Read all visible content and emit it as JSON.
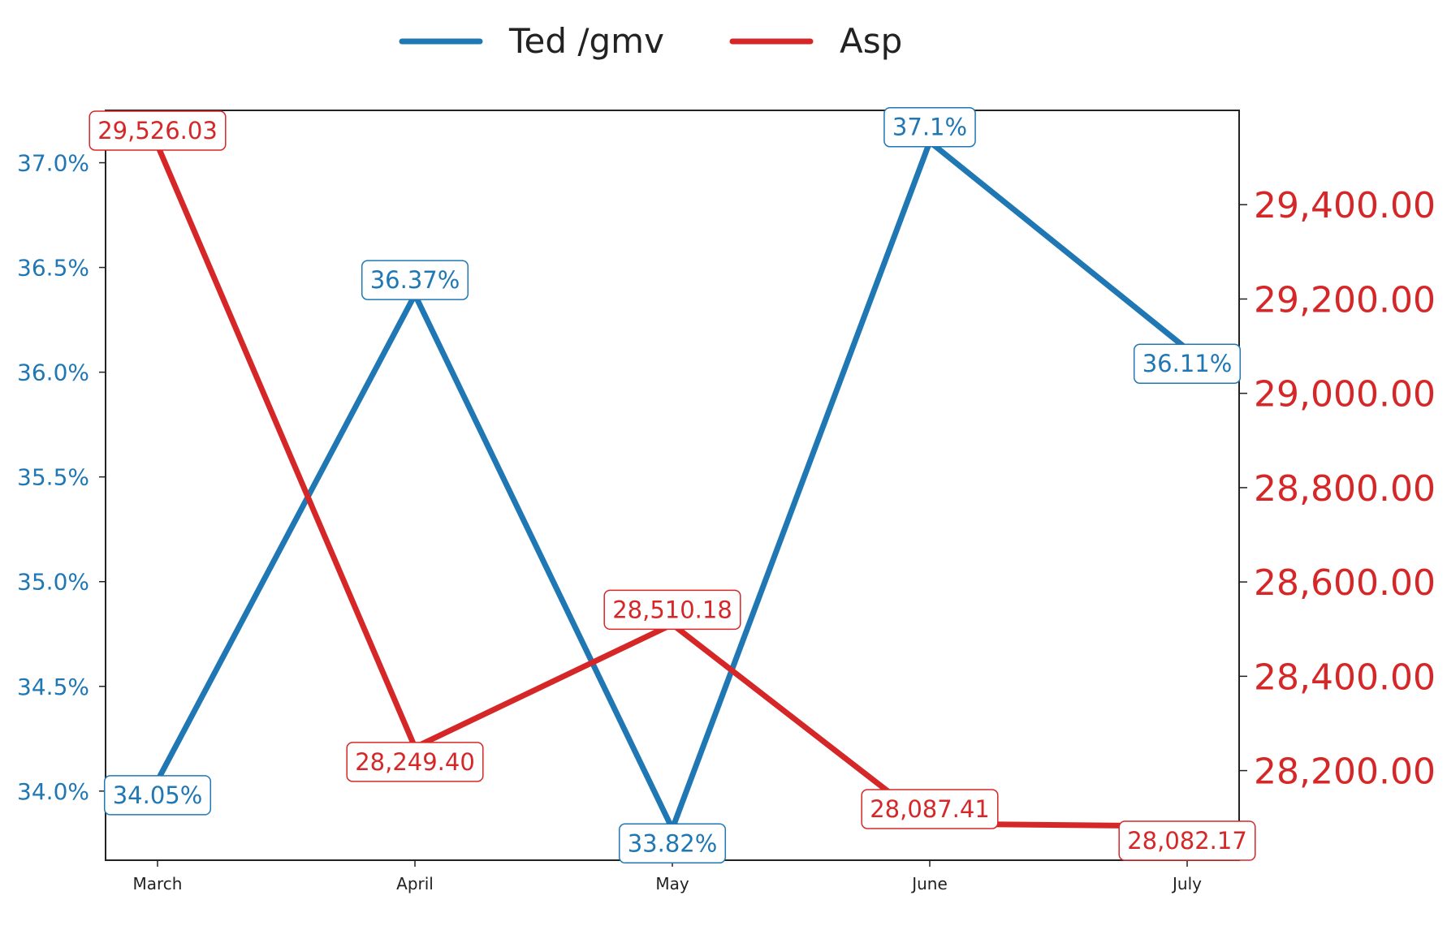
{
  "chart_data": {
    "type": "line",
    "categories": [
      "March",
      "April",
      "May",
      "June",
      "July"
    ],
    "series": [
      {
        "name": "Ted /gmv",
        "axis": "left",
        "color": "#1f77b4",
        "values": [
          34.05,
          36.37,
          33.82,
          37.1,
          36.11
        ],
        "labels": [
          "34.05%",
          "36.37%",
          "33.82%",
          "37.1%",
          "36.11%"
        ]
      },
      {
        "name": "Asp",
        "axis": "right",
        "color": "#d62728",
        "values": [
          29526.03,
          28249.4,
          28510.18,
          28087.41,
          28082.17
        ],
        "labels": [
          "29,526.03",
          "28,249.40",
          "28,510.18",
          "28,087.41",
          "28,082.17"
        ]
      }
    ],
    "y_left": {
      "ylim": [
        33.67,
        37.25
      ],
      "ticks": [
        34.0,
        34.5,
        35.0,
        35.5,
        36.0,
        36.5,
        37.0
      ],
      "tick_labels": [
        "34.0%",
        "34.5%",
        "35.0%",
        "35.5%",
        "36.0%",
        "36.5%",
        "37.0%"
      ],
      "color": "#1f77b4"
    },
    "y_right": {
      "ylim": [
        28010,
        29600
      ],
      "ticks": [
        28200,
        28400,
        28600,
        28800,
        29000,
        29200,
        29400
      ],
      "tick_labels": [
        "28,200.00",
        "28,400.00",
        "28,600.00",
        "28,800.00",
        "29,000.00",
        "29,200.00",
        "29,400.00"
      ],
      "color": "#d62728"
    },
    "legend": {
      "placement": "top-center"
    },
    "grid": false
  }
}
